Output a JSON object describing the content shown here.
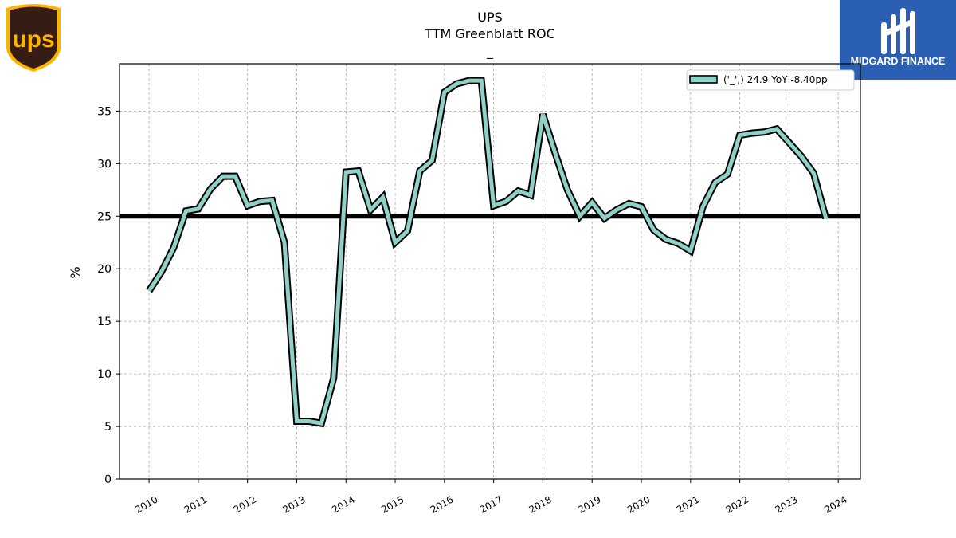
{
  "logos": {
    "left_text": "UPS",
    "right_text": "MIDGARD FINANCE"
  },
  "colors": {
    "series": "#8fd1c6",
    "series_edge": "#000000",
    "reference_line": "#000000",
    "grid": "#aaaaaa",
    "ups_brown": "#351c15",
    "ups_gold": "#ffb500",
    "midgard_blue": "#2b5fb4"
  },
  "chart_data": {
    "type": "line",
    "title": "UPS",
    "subtitle": "TTM Greenblatt ROC",
    "subtitle2": "_",
    "xlabel": "",
    "ylabel": "%",
    "xlim": [
      2009.4,
      2024.45
    ],
    "ylim": [
      0,
      39.5
    ],
    "xticks": [
      2010,
      2011,
      2012,
      2013,
      2014,
      2015,
      2016,
      2017,
      2018,
      2019,
      2020,
      2021,
      2022,
      2023,
      2024
    ],
    "xtick_labels": [
      "2010",
      "2011",
      "2012",
      "2013",
      "2014",
      "2015",
      "2016",
      "2017",
      "2018",
      "2019",
      "2020",
      "2021",
      "2022",
      "2023",
      "2024"
    ],
    "yticks": [
      0,
      5,
      10,
      15,
      20,
      25,
      30,
      35
    ],
    "grid": true,
    "legend_position": "top-right",
    "reference_line": 25,
    "series": [
      {
        "name": "('_',) 24.9 YoY -8.40pp",
        "x": [
          2010.0,
          2010.25,
          2010.5,
          2010.75,
          2011.0,
          2011.25,
          2011.5,
          2011.75,
          2012.0,
          2012.25,
          2012.5,
          2012.75,
          2013.0,
          2013.25,
          2013.5,
          2013.75,
          2014.0,
          2014.25,
          2014.5,
          2014.75,
          2015.0,
          2015.25,
          2015.5,
          2015.75,
          2016.0,
          2016.25,
          2016.5,
          2016.75,
          2017.0,
          2017.25,
          2017.5,
          2017.75,
          2018.0,
          2018.25,
          2018.5,
          2018.75,
          2019.0,
          2019.25,
          2019.5,
          2019.75,
          2020.0,
          2020.25,
          2020.5,
          2020.75,
          2021.0,
          2021.25,
          2021.5,
          2021.75,
          2022.0,
          2022.25,
          2022.5,
          2022.75,
          2023.0,
          2023.25,
          2023.5,
          2023.75
        ],
        "values": [
          17.9,
          19.7,
          22.0,
          25.5,
          25.7,
          27.6,
          28.8,
          28.8,
          26.0,
          26.4,
          26.5,
          22.5,
          5.5,
          5.5,
          5.3,
          9.6,
          29.2,
          29.3,
          25.6,
          26.8,
          22.5,
          23.6,
          29.3,
          30.3,
          36.8,
          37.6,
          37.9,
          37.9,
          26.0,
          26.4,
          27.4,
          27.0,
          34.7,
          31.0,
          27.5,
          25.0,
          26.3,
          24.8,
          25.6,
          26.2,
          25.9,
          23.7,
          22.8,
          22.4,
          21.7,
          25.9,
          28.2,
          29.0,
          32.7,
          32.9,
          33.0,
          33.3,
          32.0,
          30.7,
          29.1,
          24.8
        ]
      }
    ]
  }
}
